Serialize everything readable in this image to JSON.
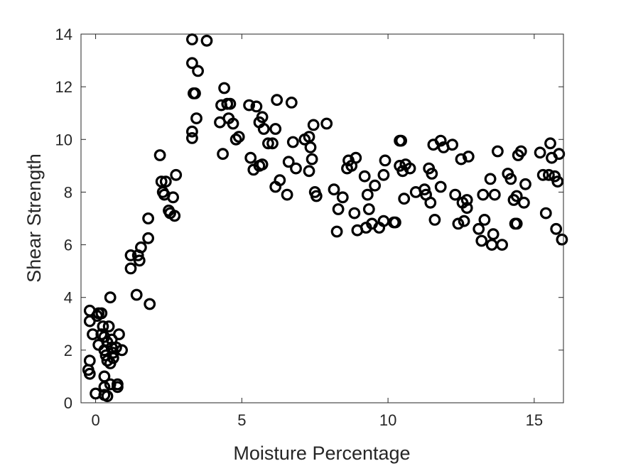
{
  "chart_data": {
    "type": "scatter",
    "title": "",
    "xlabel": "Moisture Percentage",
    "ylabel": "Shear Strength",
    "xlim": [
      -0.5,
      16
    ],
    "ylim": [
      0,
      14
    ],
    "xticks": [
      0,
      5,
      10,
      15
    ],
    "yticks": [
      0,
      2,
      4,
      6,
      8,
      10,
      12,
      14
    ],
    "grid": false,
    "marker": "open-circle",
    "marker_color": "#000000",
    "series": [
      {
        "points": [
          [
            -0.2,
            3.5
          ],
          [
            -0.2,
            3.1
          ],
          [
            -0.1,
            2.6
          ],
          [
            0.05,
            3.3
          ],
          [
            0.1,
            3.4
          ],
          [
            0.2,
            3.4
          ],
          [
            0.25,
            2.9
          ],
          [
            0.1,
            2.2
          ],
          [
            0.2,
            2.6
          ],
          [
            0.3,
            2.5
          ],
          [
            -0.2,
            1.6
          ],
          [
            -0.25,
            1.25
          ],
          [
            -0.2,
            1.1
          ],
          [
            0.0,
            0.35
          ],
          [
            0.3,
            0.3
          ],
          [
            0.4,
            0.25
          ],
          [
            0.3,
            0.6
          ],
          [
            0.5,
            0.7
          ],
          [
            0.75,
            0.6
          ],
          [
            0.75,
            0.7
          ],
          [
            0.3,
            1.0
          ],
          [
            0.5,
            4.0
          ],
          [
            0.45,
            2.9
          ],
          [
            0.55,
            2.1
          ],
          [
            0.6,
            1.9
          ],
          [
            0.7,
            2.1
          ],
          [
            0.8,
            2.6
          ],
          [
            0.9,
            2.0
          ],
          [
            0.35,
            1.8
          ],
          [
            0.4,
            1.6
          ],
          [
            0.5,
            1.5
          ],
          [
            0.6,
            1.7
          ],
          [
            0.3,
            2.0
          ],
          [
            0.4,
            2.3
          ],
          [
            0.55,
            2.4
          ],
          [
            1.2,
            5.6
          ],
          [
            1.2,
            5.1
          ],
          [
            1.45,
            5.6
          ],
          [
            1.5,
            5.4
          ],
          [
            1.55,
            5.9
          ],
          [
            1.4,
            4.1
          ],
          [
            1.8,
            6.25
          ],
          [
            1.8,
            7.0
          ],
          [
            1.85,
            3.75
          ],
          [
            2.2,
            9.4
          ],
          [
            2.25,
            8.4
          ],
          [
            2.3,
            8.0
          ],
          [
            2.4,
            8.4
          ],
          [
            2.35,
            7.9
          ],
          [
            2.5,
            7.3
          ],
          [
            2.55,
            7.2
          ],
          [
            2.65,
            7.8
          ],
          [
            2.7,
            7.1
          ],
          [
            2.75,
            8.65
          ],
          [
            3.3,
            13.8
          ],
          [
            3.8,
            13.75
          ],
          [
            3.3,
            12.9
          ],
          [
            3.5,
            12.6
          ],
          [
            3.35,
            11.75
          ],
          [
            3.4,
            11.75
          ],
          [
            3.45,
            10.8
          ],
          [
            3.3,
            10.3
          ],
          [
            3.3,
            10.05
          ],
          [
            4.25,
            10.65
          ],
          [
            4.3,
            11.3
          ],
          [
            4.4,
            11.95
          ],
          [
            4.5,
            11.35
          ],
          [
            4.6,
            11.35
          ],
          [
            4.55,
            10.8
          ],
          [
            4.7,
            10.6
          ],
          [
            4.35,
            9.45
          ],
          [
            4.8,
            10.0
          ],
          [
            4.9,
            10.1
          ],
          [
            5.25,
            11.3
          ],
          [
            5.5,
            11.25
          ],
          [
            5.6,
            10.65
          ],
          [
            5.7,
            10.85
          ],
          [
            5.75,
            10.4
          ],
          [
            5.3,
            9.3
          ],
          [
            5.4,
            8.85
          ],
          [
            5.6,
            9.0
          ],
          [
            5.7,
            9.05
          ],
          [
            5.9,
            9.85
          ],
          [
            6.05,
            9.85
          ],
          [
            6.15,
            10.4
          ],
          [
            6.2,
            11.5
          ],
          [
            6.15,
            8.2
          ],
          [
            6.3,
            8.45
          ],
          [
            6.55,
            7.9
          ],
          [
            6.6,
            9.15
          ],
          [
            6.7,
            11.4
          ],
          [
            6.75,
            9.9
          ],
          [
            6.85,
            8.9
          ],
          [
            7.15,
            10.0
          ],
          [
            7.3,
            10.1
          ],
          [
            7.3,
            8.8
          ],
          [
            7.35,
            9.7
          ],
          [
            7.4,
            9.25
          ],
          [
            7.45,
            10.55
          ],
          [
            7.5,
            8.0
          ],
          [
            7.55,
            7.85
          ],
          [
            7.9,
            10.6
          ],
          [
            8.15,
            8.1
          ],
          [
            8.3,
            7.35
          ],
          [
            8.45,
            7.8
          ],
          [
            8.25,
            6.5
          ],
          [
            8.6,
            8.9
          ],
          [
            8.65,
            9.2
          ],
          [
            8.75,
            9.0
          ],
          [
            8.85,
            7.2
          ],
          [
            8.9,
            9.3
          ],
          [
            8.95,
            6.55
          ],
          [
            9.2,
            8.6
          ],
          [
            9.25,
            6.65
          ],
          [
            9.3,
            7.9
          ],
          [
            9.35,
            7.35
          ],
          [
            9.45,
            6.8
          ],
          [
            9.55,
            8.25
          ],
          [
            9.7,
            6.65
          ],
          [
            9.85,
            8.65
          ],
          [
            9.85,
            6.9
          ],
          [
            9.9,
            9.2
          ],
          [
            10.2,
            6.85
          ],
          [
            10.25,
            6.85
          ],
          [
            10.4,
            9.95
          ],
          [
            10.4,
            9.0
          ],
          [
            10.45,
            9.95
          ],
          [
            10.5,
            8.8
          ],
          [
            10.55,
            7.75
          ],
          [
            10.6,
            9.05
          ],
          [
            10.75,
            8.9
          ],
          [
            10.95,
            8.0
          ],
          [
            11.25,
            8.1
          ],
          [
            11.3,
            7.9
          ],
          [
            11.4,
            8.9
          ],
          [
            11.45,
            7.6
          ],
          [
            11.5,
            8.7
          ],
          [
            11.55,
            9.8
          ],
          [
            11.6,
            6.95
          ],
          [
            11.8,
            9.95
          ],
          [
            11.8,
            8.2
          ],
          [
            11.9,
            9.7
          ],
          [
            12.2,
            9.8
          ],
          [
            12.3,
            7.9
          ],
          [
            12.4,
            6.8
          ],
          [
            12.5,
            9.25
          ],
          [
            12.55,
            7.6
          ],
          [
            12.6,
            6.9
          ],
          [
            12.7,
            7.7
          ],
          [
            12.7,
            7.4
          ],
          [
            12.75,
            9.35
          ],
          [
            13.1,
            6.6
          ],
          [
            13.2,
            6.15
          ],
          [
            13.25,
            7.9
          ],
          [
            13.3,
            6.95
          ],
          [
            13.5,
            8.5
          ],
          [
            13.55,
            6.0
          ],
          [
            13.6,
            6.4
          ],
          [
            13.65,
            7.9
          ],
          [
            13.75,
            9.55
          ],
          [
            13.9,
            6.0
          ],
          [
            14.1,
            8.7
          ],
          [
            14.2,
            8.5
          ],
          [
            14.3,
            7.7
          ],
          [
            14.35,
            6.8
          ],
          [
            14.4,
            6.8
          ],
          [
            14.4,
            7.85
          ],
          [
            14.45,
            9.4
          ],
          [
            14.55,
            9.55
          ],
          [
            14.65,
            7.6
          ],
          [
            14.7,
            8.3
          ],
          [
            15.2,
            9.5
          ],
          [
            15.3,
            8.65
          ],
          [
            15.4,
            7.2
          ],
          [
            15.5,
            8.65
          ],
          [
            15.55,
            9.85
          ],
          [
            15.6,
            9.3
          ],
          [
            15.7,
            8.6
          ],
          [
            15.75,
            6.6
          ],
          [
            15.8,
            8.4
          ],
          [
            15.85,
            9.45
          ],
          [
            15.95,
            6.2
          ]
        ]
      }
    ]
  }
}
